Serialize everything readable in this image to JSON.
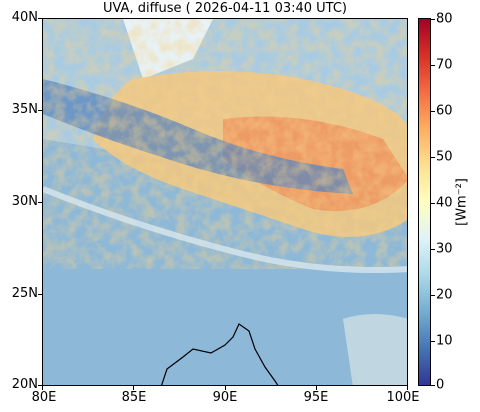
{
  "title": "UVA, diffuse ( 2026-04-11 03:40 UTC)",
  "map": {
    "extent_lon": [
      80,
      100
    ],
    "extent_lat": [
      20,
      40
    ],
    "lat_ticks": [
      "40N",
      "35N",
      "30N",
      "25N",
      "20N"
    ],
    "lon_ticks": [
      "80E",
      "85E",
      "90E",
      "95E",
      "100E"
    ],
    "background_color": "#8db8d8"
  },
  "colorbar": {
    "ticks": [
      "80",
      "70",
      "60",
      "50",
      "40",
      "30",
      "20",
      "10",
      "0"
    ],
    "unit_label": "[Wm⁻²]",
    "colormap": "RdYlBu_r",
    "range": [
      0,
      80
    ]
  }
}
